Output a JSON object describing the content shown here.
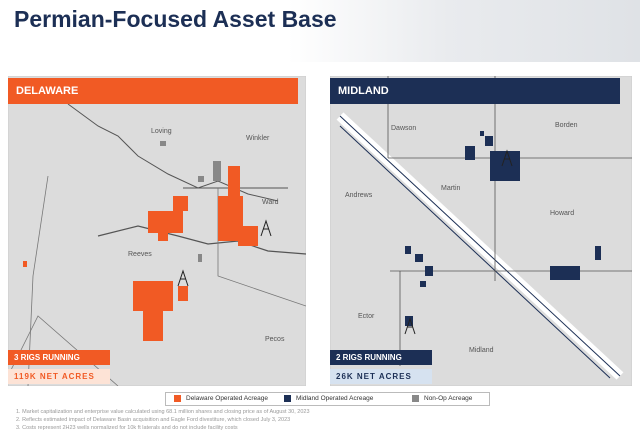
{
  "header": {
    "title": "Permian-Focused Asset Base"
  },
  "panels": [
    {
      "name": "DELAWARE",
      "counties": [
        "Loving",
        "Winkler",
        "Ward",
        "Reeves",
        "Pecos"
      ],
      "rigs": "3 RIGS RUNNING",
      "acres": "119K NET ACRES"
    },
    {
      "name": "MIDLAND",
      "counties": [
        "Dawson",
        "Borden",
        "Martin",
        "Andrews",
        "Howard",
        "Ector",
        "Midland"
      ],
      "rigs": "2 RIGS RUNNING",
      "acres": "26K NET ACRES"
    }
  ],
  "legend": [
    "Delaware Operated Acreage",
    "Midland Operated Acreage",
    "Non-Op Acreage"
  ],
  "footnotes": [
    "1. Market capitalization and enterprise value calculated using 68.1 million shares and closing price as of August 30, 2023",
    "2. Reflects estimated impact of Delaware Basin acquisition and Eagle Ford divestiture, which closed July 3, 2023",
    "3. Costs represent 2H23 wells normalized for 10k ft laterals and do not include facility costs"
  ]
}
